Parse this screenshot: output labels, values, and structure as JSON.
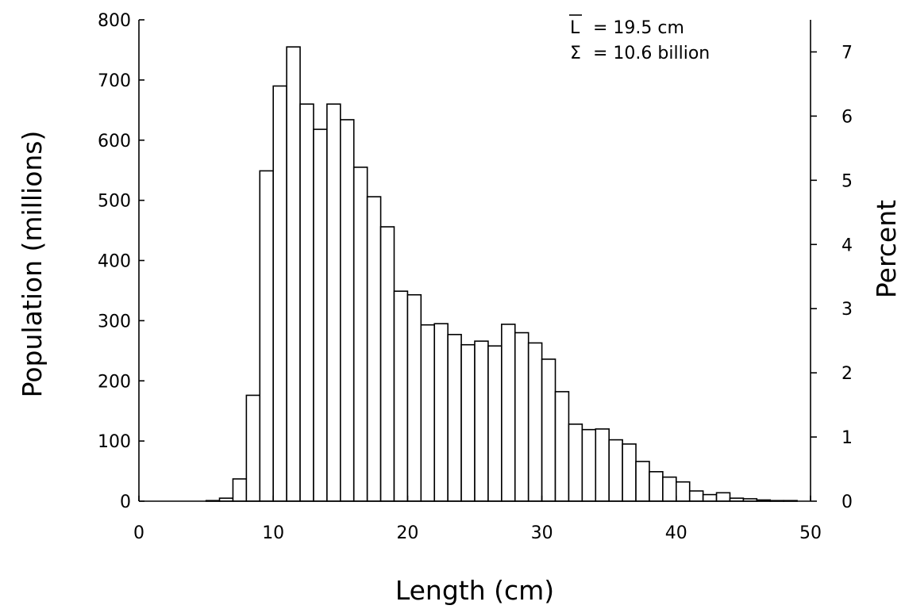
{
  "chart_data": {
    "type": "bar",
    "ylabel": "Population (millions)",
    "xlabel": "Length (cm)",
    "y2label": "Percent",
    "xlim": [
      0,
      50
    ],
    "ylim": [
      0,
      800
    ],
    "y2lim": [
      0,
      7.5
    ],
    "x_ticks": [
      "0",
      "10",
      "20",
      "30",
      "40",
      "50"
    ],
    "y_ticks": [
      "0",
      "100",
      "200",
      "300",
      "400",
      "500",
      "600",
      "700",
      "800"
    ],
    "y2_ticks": [
      "0",
      "1",
      "2",
      "3",
      "4",
      "5",
      "6",
      "7"
    ],
    "bin_width": 1,
    "bin_start": [
      0,
      1,
      2,
      3,
      4,
      5,
      6,
      7,
      8,
      9,
      10,
      11,
      12,
      13,
      14,
      15,
      16,
      17,
      18,
      19,
      20,
      21,
      22,
      23,
      24,
      25,
      26,
      27,
      28,
      29,
      30,
      31,
      32,
      33,
      34,
      35,
      36,
      37,
      38,
      39,
      40,
      41,
      42,
      43,
      44,
      45,
      46,
      47,
      48,
      49
    ],
    "values": [
      0,
      0,
      0,
      0,
      0,
      1,
      5,
      37,
      176,
      549,
      690,
      755,
      660,
      618,
      660,
      634,
      555,
      506,
      456,
      349,
      343,
      293,
      295,
      277,
      260,
      266,
      258,
      294,
      280,
      263,
      236,
      182,
      128,
      119,
      120,
      102,
      95,
      66,
      49,
      40,
      32,
      17,
      11,
      14,
      5,
      4,
      2,
      1,
      1,
      0
    ],
    "annotations": {
      "mean_label": "L",
      "mean_text": "= 19.5 cm",
      "sum_label": "Σ",
      "sum_text": "= 10.6 billion"
    },
    "grid": false,
    "legend": "none"
  }
}
